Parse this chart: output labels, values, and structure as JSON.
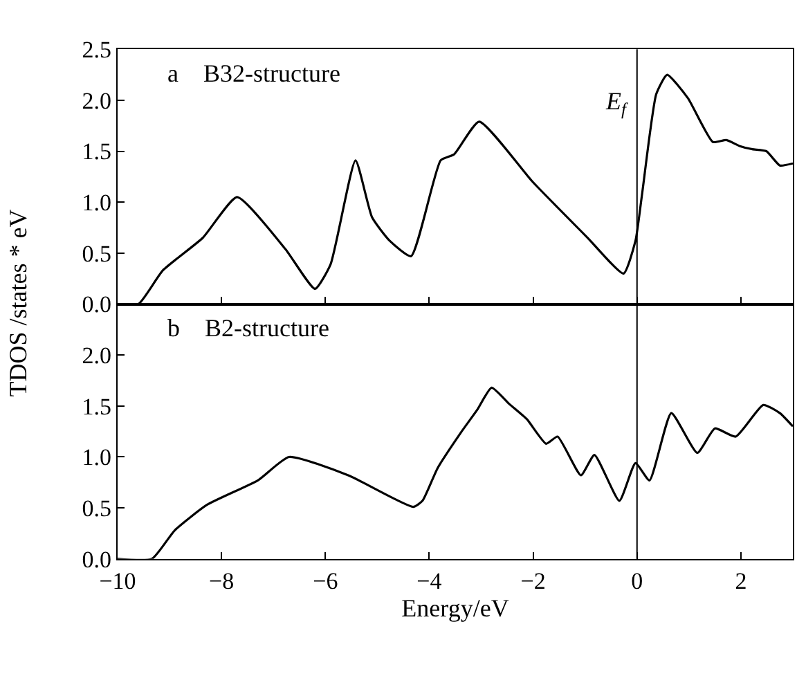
{
  "chart_data": [
    {
      "type": "line",
      "ylabel": "TDOS /states * eV",
      "annotations": [
        "a    B32-structure"
      ],
      "tick_labels": "y",
      "grid": false,
      "marker": "none",
      "line_style": "solid",
      "xlim": [
        -10,
        3
      ],
      "ylim": [
        0,
        2.5
      ],
      "yticks": [
        {
          "value": 0,
          "label": "0.0"
        },
        {
          "value": 0.5,
          "label": "0.5"
        },
        {
          "value": 1,
          "label": "1.0"
        },
        {
          "value": 1.5,
          "label": "1.5"
        },
        {
          "value": 2,
          "label": "2.0"
        },
        {
          "value": 2.5,
          "label": "2.5"
        }
      ],
      "xticks": [
        -10,
        -8,
        -6,
        -4,
        -2,
        0,
        2
      ],
      "ref_lines": [
        {
          "axis": "x",
          "value": 0,
          "label": "E$_{f}$",
          "color": "#000000"
        }
      ],
      "series": [
        {
          "color": "#000000",
          "x": [
            -10,
            -9.6,
            -9.13,
            -8.36,
            -7.7,
            -6.77,
            -6.2,
            -5.9,
            -5.42,
            -5.1,
            -4.76,
            -4.35,
            -3.78,
            -3.52,
            -3.04,
            -2.01,
            -0.95,
            -0.26,
            -0.03,
            0.1,
            0.37,
            0.58,
            0.98,
            1.46,
            1.72,
            1.98,
            2.22,
            2.49,
            2.75,
            3.0
          ],
          "values": [
            0,
            0,
            0.33,
            0.65,
            1.05,
            0.54,
            0.15,
            0.39,
            1.41,
            0.85,
            0.62,
            0.47,
            1.41,
            1.47,
            1.79,
            1.2,
            0.65,
            0.3,
            0.62,
            1.09,
            2.06,
            2.25,
            2.02,
            1.59,
            1.61,
            1.55,
            1.52,
            1.5,
            1.36,
            1.38
          ]
        }
      ]
    },
    {
      "type": "line",
      "xlabel": "Energy/eV",
      "annotations": [
        "b    B2-structure"
      ],
      "grid": false,
      "marker": "none",
      "line_style": "solid",
      "xlim": [
        -10,
        3
      ],
      "ylim": [
        0,
        2.5
      ],
      "yticks": [
        {
          "value": 0,
          "label": "0.0"
        },
        {
          "value": 0.5,
          "label": "0.5"
        },
        {
          "value": 1,
          "label": "1.0"
        },
        {
          "value": 1.5,
          "label": "1.5"
        },
        {
          "value": 2,
          "label": "2.0"
        }
      ],
      "xticks": [
        {
          "value": -10,
          "label": "−10"
        },
        {
          "value": -8,
          "label": "−8"
        },
        {
          "value": -6,
          "label": "−6"
        },
        {
          "value": -4,
          "label": "−4"
        },
        {
          "value": -2,
          "label": "−2"
        },
        0,
        2
      ],
      "ref_lines": [
        {
          "axis": "x",
          "value": 0,
          "label": null,
          "color": "#000000"
        }
      ],
      "series": [
        {
          "color": "#000000",
          "x": [
            -10,
            -9.34,
            -8.9,
            -8.28,
            -7.3,
            -6.7,
            -5.56,
            -4.31,
            -4.13,
            -3.84,
            -3.39,
            -3.08,
            -2.8,
            -2.46,
            -2.12,
            -1.75,
            -1.53,
            -1.08,
            -0.82,
            -0.34,
            -0.03,
            0.24,
            0.66,
            1.16,
            1.5,
            1.9,
            2.43,
            2.75,
            3.0
          ],
          "values": [
            0,
            0,
            0.28,
            0.53,
            0.77,
            1.0,
            0.82,
            0.51,
            0.57,
            0.89,
            1.24,
            1.46,
            1.68,
            1.52,
            1.37,
            1.13,
            1.2,
            0.82,
            1.02,
            0.57,
            0.94,
            0.77,
            1.43,
            1.04,
            1.28,
            1.2,
            1.51,
            1.43,
            1.3
          ]
        }
      ]
    }
  ]
}
